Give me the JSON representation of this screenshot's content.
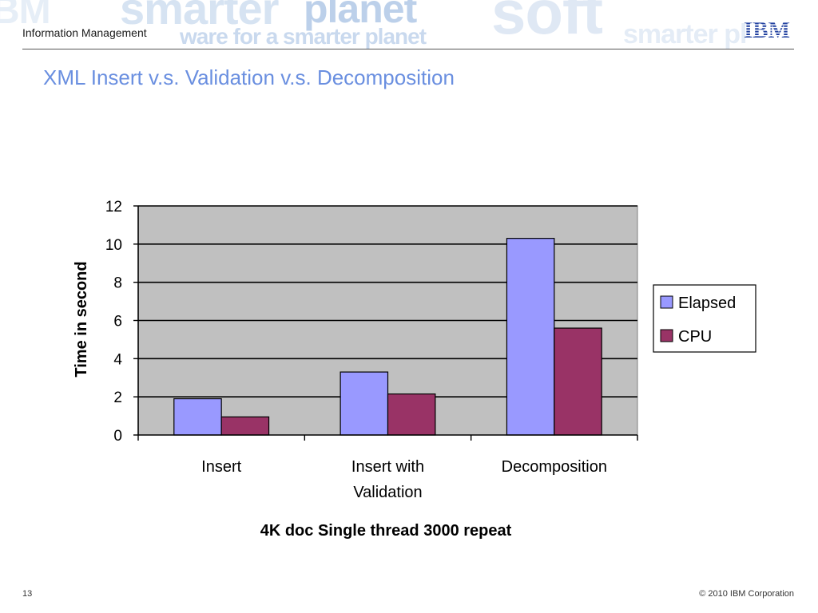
{
  "header": {
    "section": "Information Management",
    "logo": "IBM",
    "watermark": [
      "smarter",
      "ware for a smarter planet",
      "soft",
      "planet",
      "smarter pl",
      "BM"
    ]
  },
  "title": "XML Insert v.s. Validation v.s. Decomposition",
  "footer": {
    "page_number": "13",
    "copyright": "© 2010 IBM Corporation"
  },
  "colors": {
    "title": "#6a8fe0",
    "elapsed": "#9999ff",
    "cpu": "#993366",
    "plot_bg": "#c0c0c0"
  },
  "chart_data": {
    "type": "bar",
    "categories": [
      [
        "Insert"
      ],
      [
        "Insert with",
        "Validation"
      ],
      [
        "Decomposition"
      ]
    ],
    "series": [
      {
        "name": "Elapsed",
        "values": [
          1.9,
          3.3,
          10.3
        ],
        "color": "#9999ff"
      },
      {
        "name": "CPU",
        "values": [
          0.95,
          2.15,
          5.6
        ],
        "color": "#993366"
      }
    ],
    "yticks": [
      0,
      2,
      4,
      6,
      8,
      10,
      12
    ],
    "ylim": [
      0,
      12
    ],
    "ylabel": "Time in second",
    "xlabel": "4K doc Single thread 3000 repeat",
    "grid": true,
    "legend": "right"
  }
}
